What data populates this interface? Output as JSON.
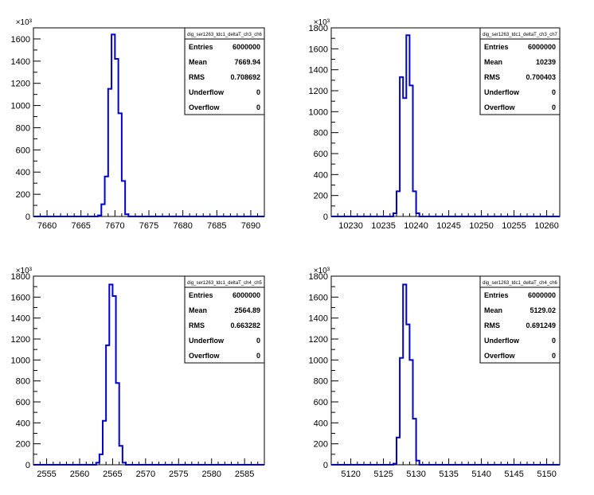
{
  "chart_data": [
    {
      "type": "histogram",
      "title": "dig_ser1263_tdc1_deltaT_ch3_ch6",
      "xlim": [
        7658,
        7692
      ],
      "ylim": [
        0,
        1700
      ],
      "y_scale_label": "×10³",
      "x_ticks": [
        "7660",
        "7665",
        "7670",
        "7675",
        "7680",
        "7685",
        "7690"
      ],
      "y_ticks": [
        "0",
        "200",
        "400",
        "600",
        "800",
        "1000",
        "1200",
        "1400",
        "1600"
      ],
      "bin_edges": [
        7667.5,
        7668.0,
        7668.5,
        7669.0,
        7669.5,
        7670.0,
        7670.5,
        7671.0,
        7671.5,
        7672.0
      ],
      "values": [
        10,
        110,
        360,
        1150,
        1640,
        1420,
        930,
        320,
        20
      ],
      "stats": [
        {
          "label": "Entries",
          "value": "6000000"
        },
        {
          "label": "Mean",
          "value": "7669.94"
        },
        {
          "label": "RMS",
          "value": "0.708692"
        },
        {
          "label": "Underflow",
          "value": "0"
        },
        {
          "label": "Overflow",
          "value": "0"
        }
      ]
    },
    {
      "type": "histogram",
      "title": "dig_ser1263_tdc1_deltaT_ch3_ch7",
      "xlim": [
        10227,
        10262
      ],
      "ylim": [
        0,
        1800
      ],
      "y_scale_label": "×10³",
      "x_ticks": [
        "10230",
        "10235",
        "10240",
        "10245",
        "10250",
        "10255",
        "10260"
      ],
      "y_ticks": [
        "0",
        "200",
        "400",
        "600",
        "800",
        "1000",
        "1200",
        "1400",
        "1600",
        "1800"
      ],
      "bin_edges": [
        10236.5,
        10237.0,
        10237.5,
        10238.0,
        10238.5,
        10239.0,
        10239.5,
        10240.0,
        10240.5,
        10241.0
      ],
      "values": [
        30,
        240,
        1330,
        1130,
        1730,
        1250,
        240,
        30,
        0
      ],
      "stats": [
        {
          "label": "Entries",
          "value": "6000000"
        },
        {
          "label": "Mean",
          "value": "10239"
        },
        {
          "label": "RMS",
          "value": "0.700403"
        },
        {
          "label": "Underflow",
          "value": "0"
        },
        {
          "label": "Overflow",
          "value": "0"
        }
      ]
    },
    {
      "type": "histogram",
      "title": "dig_ser1263_tdc1_deltaT_ch4_ch5",
      "xlim": [
        2553,
        2588
      ],
      "ylim": [
        0,
        1800
      ],
      "y_scale_label": "×10³",
      "x_ticks": [
        "2555",
        "2560",
        "2565",
        "2570",
        "2575",
        "2580",
        "2585"
      ],
      "y_ticks": [
        "0",
        "200",
        "400",
        "600",
        "800",
        "1000",
        "1200",
        "1400",
        "1600",
        "1800"
      ],
      "bin_edges": [
        2562.5,
        2563.0,
        2563.5,
        2564.0,
        2564.5,
        2565.0,
        2565.5,
        2566.0,
        2566.5,
        2567.0
      ],
      "values": [
        20,
        100,
        420,
        1140,
        1720,
        1610,
        780,
        180,
        20
      ],
      "stats": [
        {
          "label": "Entries",
          "value": "6000000"
        },
        {
          "label": "Mean",
          "value": "2564.89"
        },
        {
          "label": "RMS",
          "value": "0.663282"
        },
        {
          "label": "Underflow",
          "value": "0"
        },
        {
          "label": "Overflow",
          "value": "0"
        }
      ]
    },
    {
      "type": "histogram",
      "title": "dig_ser1263_tdc1_deltaT_ch4_ch6",
      "xlim": [
        5117,
        5152
      ],
      "ylim": [
        0,
        1800
      ],
      "y_scale_label": "×10³",
      "x_ticks": [
        "5120",
        "5125",
        "5130",
        "5135",
        "5140",
        "5145",
        "5150"
      ],
      "y_ticks": [
        "0",
        "200",
        "400",
        "600",
        "800",
        "1000",
        "1200",
        "1400",
        "1600",
        "1800"
      ],
      "bin_edges": [
        5126.5,
        5127.0,
        5127.5,
        5128.0,
        5128.5,
        5129.0,
        5129.5,
        5130.0,
        5130.5,
        5131.0
      ],
      "values": [
        10,
        260,
        1020,
        1720,
        1340,
        1000,
        440,
        40,
        0
      ],
      "stats": [
        {
          "label": "Entries",
          "value": "6000000"
        },
        {
          "label": "Mean",
          "value": "5129.02"
        },
        {
          "label": "RMS",
          "value": "0.691249"
        },
        {
          "label": "Underflow",
          "value": "0"
        },
        {
          "label": "Overflow",
          "value": "0"
        }
      ]
    }
  ],
  "colors": {
    "line": "#0000cc",
    "axis": "#000000",
    "background": "#ffffff"
  }
}
